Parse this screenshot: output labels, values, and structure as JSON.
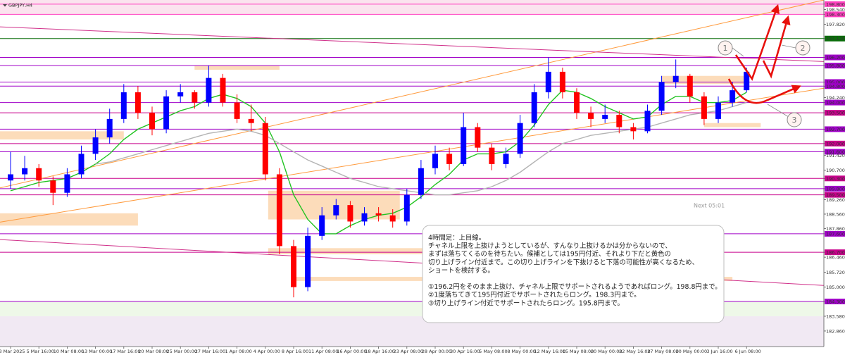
{
  "chart_data": {
    "type": "candlestick",
    "title": "GBPJPY,H4",
    "categories": [
      "3 Mar 2025",
      null,
      "5 Mar 16:00",
      null,
      "10 Mar 08:00",
      null,
      "13 Mar 00:00",
      null,
      "17 Mar 16:00",
      null,
      "20 Mar 08:00",
      null,
      "25 Mar 00:00",
      null,
      "27 Mar 16:00",
      null,
      "1 Apr 08:00",
      null,
      "4 Apr 00:00",
      null,
      "8 Apr 16:00",
      null,
      "11 Apr 08:00",
      null,
      "16 Apr 00:00",
      null,
      "18 Apr 16:00",
      null,
      "23 Apr 08:00",
      null,
      "28 Apr 00:00",
      null,
      "30 Apr 16:00",
      null,
      "5 May 08:00",
      null,
      "8 May 00:00",
      null,
      "12 May 16:00",
      null,
      "15 May 08:00",
      null,
      "20 May 00:00",
      null,
      "22 May 16:00",
      null,
      "27 May 08:00",
      null,
      "30 May 00:00",
      null,
      "3 Jun 16:00",
      null,
      "6 Jun 08:00"
    ],
    "open": [
      190.2,
      190.5,
      190.8,
      190.2,
      189.6,
      190.5,
      191.5,
      192.3,
      193.2,
      194.5,
      193.5,
      192.7,
      194.3,
      194.5,
      194.0,
      195.2,
      194.0,
      193.2,
      193.0,
      190.5,
      187.0,
      185.0,
      187.5,
      188.5,
      189.0,
      188.2,
      188.6,
      188.5,
      188.2,
      189.5,
      190.8,
      191.5,
      191.0,
      192.8,
      191.8,
      191.0,
      191.5,
      193.0,
      194.5,
      195.5,
      194.5,
      193.5,
      193.2,
      193.4,
      192.8,
      192.6,
      193.6,
      195.0,
      195.3,
      194.3,
      193.2,
      194.0,
      194.6
    ],
    "high": [
      191.6,
      191.4,
      191.0,
      190.4,
      190.8,
      191.9,
      192.7,
      193.7,
      194.9,
      194.8,
      193.8,
      194.6,
      194.9,
      194.6,
      195.8,
      195.4,
      194.4,
      193.9,
      193.3,
      190.8,
      187.3,
      187.9,
      188.9,
      189.3,
      189.2,
      188.9,
      188.9,
      188.8,
      189.8,
      191.2,
      191.9,
      191.8,
      193.5,
      193.0,
      192.0,
      191.8,
      193.4,
      194.9,
      196.2,
      195.7,
      194.7,
      193.8,
      193.9,
      193.6,
      193.0,
      193.9,
      195.3,
      196.1,
      195.4,
      194.5,
      194.3,
      195.0,
      195.7
    ],
    "low": [
      189.8,
      190.2,
      189.9,
      189.0,
      189.4,
      190.3,
      191.2,
      192.0,
      193.0,
      193.2,
      192.4,
      192.5,
      194.0,
      193.7,
      193.8,
      193.8,
      193.0,
      192.6,
      190.2,
      186.6,
      184.5,
      184.8,
      187.3,
      188.3,
      187.9,
      188.0,
      188.2,
      187.9,
      188.0,
      189.3,
      190.5,
      190.7,
      190.9,
      191.6,
      190.7,
      190.8,
      191.3,
      192.8,
      194.2,
      194.2,
      193.2,
      192.8,
      193.0,
      192.5,
      192.2,
      192.5,
      193.4,
      194.7,
      194.0,
      192.9,
      193.0,
      193.8,
      194.5
    ],
    "close": [
      190.5,
      190.8,
      190.2,
      189.6,
      190.5,
      191.5,
      192.3,
      193.2,
      194.5,
      193.5,
      192.7,
      194.3,
      194.5,
      194.0,
      195.2,
      194.0,
      193.2,
      193.0,
      190.5,
      187.0,
      185.0,
      187.5,
      188.5,
      189.0,
      188.2,
      188.6,
      188.5,
      188.2,
      189.5,
      190.8,
      191.5,
      191.0,
      192.8,
      191.8,
      191.0,
      191.5,
      193.0,
      194.5,
      195.5,
      194.5,
      193.5,
      193.2,
      193.4,
      192.8,
      192.6,
      193.6,
      195.0,
      195.3,
      194.3,
      193.2,
      194.0,
      194.6,
      195.5
    ],
    "up_color": "#0000ff",
    "down_color": "#ff0000",
    "lines": [
      {
        "color": "#22c322",
        "values": [
          189.7,
          189.9,
          190.1,
          190.2,
          190.3,
          190.6,
          191.0,
          191.5,
          192.2,
          192.7,
          193.0,
          193.3,
          193.6,
          193.8,
          194.2,
          194.4,
          194.2,
          193.8,
          193.0,
          191.6,
          189.5,
          188.3,
          187.6,
          187.6,
          188.0,
          188.3,
          188.5,
          188.6,
          188.9,
          189.4,
          190.0,
          190.5,
          191.2,
          191.5,
          191.5,
          191.6,
          192.1,
          192.9,
          193.9,
          194.6,
          194.5,
          194.2,
          193.8,
          193.5,
          193.2,
          193.3,
          193.9,
          194.3,
          194.3,
          194.0,
          194.0,
          194.1,
          194.5
        ]
      },
      {
        "color": "#b4b4b4",
        "values": [
          null,
          null,
          null,
          null,
          null,
          null,
          191.0,
          191.1,
          191.3,
          191.5,
          191.7,
          191.9,
          192.1,
          192.3,
          192.5,
          192.6,
          192.7,
          192.6,
          192.4,
          192.0,
          191.6,
          191.2,
          190.9,
          190.6,
          190.3,
          190.1,
          189.9,
          189.8,
          189.7,
          189.6,
          189.5,
          189.5,
          189.6,
          189.7,
          189.9,
          190.2,
          190.6,
          191.1,
          191.6,
          192.0,
          192.2,
          192.4,
          192.5,
          192.6,
          192.7,
          192.8,
          193.0,
          193.2,
          193.4,
          193.5,
          193.6,
          193.8,
          194.0
        ]
      }
    ],
    "trend_lines": [
      {
        "color": "#ff9a3c",
        "values": [
          188.17,
          194.7
        ]
      },
      {
        "color": "#ff9a3c",
        "values": [
          189.84,
          199.0
        ]
      },
      {
        "color": "#d0308a",
        "values": [
          197.69,
          196.0
        ]
      },
      {
        "color": "#d0308a",
        "values": [
          187.32,
          185.08
        ]
      }
    ],
    "bands": [
      {
        "from": 198.3,
        "to": 199.0,
        "color": "#fbe3ee"
      },
      {
        "from": 183.58,
        "to": 184.3,
        "color": "#eef8e8"
      },
      {
        "from": 181.69,
        "to": 183.58,
        "color": "#f1e9f3"
      }
    ],
    "zones": [
      {
        "from_index": -1,
        "to_index": 9,
        "low": 188.0,
        "high": 188.6
      },
      {
        "from_index": -1,
        "to_index": 8,
        "low": 192.2,
        "high": 192.6
      },
      {
        "from_index": 13,
        "to_index": 19,
        "low": 195.6,
        "high": 195.8
      },
      {
        "from_index": 18.2,
        "to_index": 27.5,
        "low": 188.3,
        "high": 189.7
      },
      {
        "from_index": 18.2,
        "to_index": 31,
        "low": 186.6,
        "high": 186.9
      },
      {
        "from_index": 20,
        "to_index": 51,
        "low": 185.3,
        "high": 185.5
      },
      {
        "from_index": 46,
        "to_index": 52,
        "low": 194.9,
        "high": 195.3
      },
      {
        "from_index": 49,
        "to_index": 53,
        "low": 192.8,
        "high": 193.0
      }
    ],
    "levels": [
      {
        "value": 198.8,
        "color": "#ff40c0"
      },
      {
        "value": 198.3,
        "color": "#ff40c0"
      },
      {
        "value": 197.12,
        "color": "#0a6e0a"
      },
      {
        "value": 196.2,
        "color": "#a000c8"
      },
      {
        "value": 195.8,
        "color": "#a000c8"
      },
      {
        "value": 195.0,
        "color": "#a000c8"
      },
      {
        "value": 194.8,
        "color": "#a000c8"
      },
      {
        "value": 194.0,
        "color": "#a000c8"
      },
      {
        "value": 193.5,
        "color": "#c8008c"
      },
      {
        "value": 192.7,
        "color": "#a000c8"
      },
      {
        "value": 192.0,
        "color": "#c8008c"
      },
      {
        "value": 191.6,
        "color": "#a000c8"
      },
      {
        "value": 190.3,
        "color": "#c8008c"
      },
      {
        "value": 189.8,
        "color": "#a000c8"
      },
      {
        "value": 189.5,
        "color": "#c8008c"
      },
      {
        "value": 187.6,
        "color": "#a000c8"
      },
      {
        "value": 186.7,
        "color": "#c8008c"
      },
      {
        "value": 184.3,
        "color": "#a000c8"
      }
    ],
    "ylim": [
      181.69,
      199.0
    ],
    "yticks": [
      {
        "value": 198.8,
        "label": "198.800"
      },
      {
        "value": 198.54,
        "label": "198.540"
      },
      {
        "value": 198.3,
        "label": "198.300"
      },
      {
        "value": 197.82,
        "label": "197.820"
      },
      {
        "value": 197.12,
        "label": "197.120"
      },
      {
        "value": 196.2,
        "label": "196.200"
      },
      {
        "value": 195.8,
        "label": "195.800"
      },
      {
        "value": 195.0,
        "label": "195.000"
      },
      {
        "value": 194.8,
        "label": "194.800"
      },
      {
        "value": 194.24,
        "label": "194.240"
      },
      {
        "value": 194.0,
        "label": "194.000"
      },
      {
        "value": 193.5,
        "label": "193.500"
      },
      {
        "value": 192.7,
        "label": "192.700"
      },
      {
        "value": 192.0,
        "label": "192.000"
      },
      {
        "value": 191.6,
        "label": "191.600"
      },
      {
        "value": 191.42,
        "label": "191.420"
      },
      {
        "value": 190.7,
        "label": "190.700"
      },
      {
        "value": 190.3,
        "label": "190.300"
      },
      {
        "value": 189.8,
        "label": "189.800"
      },
      {
        "value": 189.5,
        "label": "189.500"
      },
      {
        "value": 189.26,
        "label": "189.260"
      },
      {
        "value": 188.56,
        "label": "188.560"
      },
      {
        "value": 187.86,
        "label": "187.860"
      },
      {
        "value": 187.6,
        "label": "187.600"
      },
      {
        "value": 186.7,
        "label": "186.700"
      },
      {
        "value": 186.46,
        "label": "186.460"
      },
      {
        "value": 185.72,
        "label": "185.720"
      },
      {
        "value": 185.0,
        "label": "185.000"
      },
      {
        "value": 184.3,
        "label": "184.300"
      },
      {
        "value": 183.58,
        "label": "183.580"
      },
      {
        "value": 182.86,
        "label": "182.860"
      }
    ],
    "countdown": "Next 05:01",
    "markers": [
      "1",
      "2",
      "3"
    ],
    "note": [
      [
        "4時間足：上目線。",
        "チャネル上限を上抜けようとしているが、すんなり上抜けるかは分からないので、",
        "まずは落ちてくるのを待ちたい。候補としては195円付近、それより下だと黄色の",
        "切り上げライン付近まで。この切り上げラインを下抜けると下落の可能性が高くなるため、",
        "ショートを検討する。"
      ],
      [
        "①196.2円をそのまま上抜け、チャネル上限でサポートされるようであればロング。198.8円まで。",
        "②1度落ちてきて195円付近でサポートされたらロング。198.3円まで。",
        "③切り上げライン付近でサポートされたらロング。195.8円まで。"
      ]
    ]
  }
}
